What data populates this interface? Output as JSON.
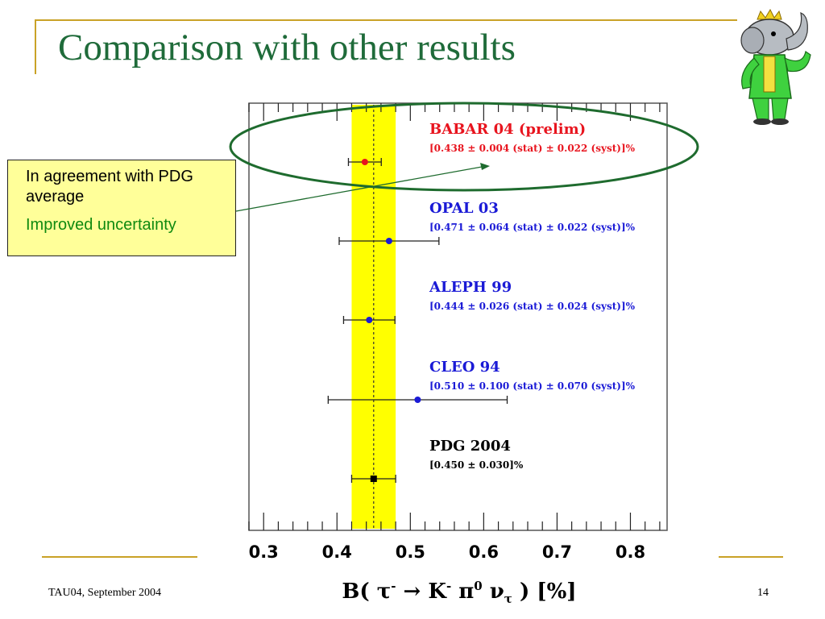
{
  "slide": {
    "title": "Comparison with other results",
    "footer_left": "TAU04, September  2004",
    "page_number": "14"
  },
  "callout": {
    "line1": "In agreement with PDG average",
    "line2": "Improved uncertainty"
  },
  "colors": {
    "title": "#1f6b3a",
    "babar": "#e8141e",
    "other": "#1a1ad6",
    "band": "#ffff00",
    "ellipse": "#1e6b2e",
    "rule": "#c9a227"
  },
  "chart_data": {
    "type": "scatter",
    "xlabel": "B( τ⁻ → K⁻ π⁰ ν_τ ) [%]",
    "xlim": [
      0.28,
      0.85
    ],
    "x_ticks": [
      "0.3",
      "0.4",
      "0.5",
      "0.6",
      "0.7",
      "0.8"
    ],
    "x_tick_values": [
      0.3,
      0.4,
      0.5,
      0.6,
      0.7,
      0.8
    ],
    "average_band": {
      "center": 0.45,
      "low": 0.42,
      "high": 0.48
    },
    "grid": false,
    "measurements": [
      {
        "name": "BABAR 04 (prelim)",
        "detail": "[0.438 ± 0.004 (stat) ± 0.022 (syst)]%",
        "value": 0.438,
        "err": 0.0224,
        "color": "#e8141e",
        "marker": "circle",
        "circled": true
      },
      {
        "name": "OPAL 03",
        "detail": "[0.471 ± 0.064 (stat) ± 0.022 (syst)]%",
        "value": 0.471,
        "err": 0.068,
        "color": "#1a1ad6",
        "marker": "circle"
      },
      {
        "name": "ALEPH 99",
        "detail": "[0.444 ± 0.026 (stat) ± 0.024 (syst)]%",
        "value": 0.444,
        "err": 0.035,
        "color": "#1a1ad6",
        "marker": "circle"
      },
      {
        "name": "CLEO 94",
        "detail": "[0.510 ± 0.100 (stat) ± 0.070 (syst)]%",
        "value": 0.51,
        "err": 0.122,
        "color": "#1a1ad6",
        "marker": "circle"
      },
      {
        "name": "PDG 2004",
        "detail": "[0.450 ± 0.030]%",
        "value": 0.45,
        "err": 0.03,
        "color": "#000000",
        "marker": "square"
      }
    ]
  }
}
